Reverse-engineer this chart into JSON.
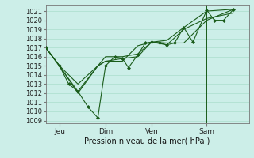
{
  "background_color": "#cceee8",
  "grid_color": "#aaddcc",
  "line_color": "#1a5c1a",
  "marker_color": "#1a5c1a",
  "xlabel_text": "Pression niveau de la mer( hPa )",
  "ylim": [
    1009,
    1021.5
  ],
  "yticks": [
    1009,
    1010,
    1011,
    1012,
    1013,
    1014,
    1015,
    1016,
    1017,
    1018,
    1019,
    1020,
    1021
  ],
  "xtick_labels": [
    "Jeu",
    "Dim",
    "Ven",
    "Sam"
  ],
  "xtick_positions": [
    18,
    78,
    138,
    210
  ],
  "xlim": [
    0,
    265
  ],
  "vlines_x": [
    18,
    78,
    138,
    210
  ],
  "series": [
    {
      "x": [
        0,
        18,
        30,
        42,
        55,
        68,
        78,
        90,
        100,
        108,
        120,
        130,
        138,
        148,
        158,
        168,
        180,
        192,
        210,
        220,
        232,
        245
      ],
      "y": [
        1017,
        1015,
        1013,
        1012.2,
        1010.5,
        1009.3,
        1015,
        1016.0,
        1015.8,
        1014.8,
        1016.2,
        1017.5,
        1017.6,
        1017.5,
        1017.3,
        1017.5,
        1019.2,
        1017.6,
        1021.1,
        1020.0,
        1020.0,
        1021.2
      ],
      "has_markers": true
    },
    {
      "x": [
        0,
        18,
        42,
        68,
        78,
        100,
        120,
        138,
        158,
        180,
        210,
        245
      ],
      "y": [
        1017,
        1015,
        1012,
        1015,
        1015.5,
        1015.8,
        1016.0,
        1017.6,
        1017.3,
        1019.0,
        1020.2,
        1020.8
      ],
      "has_markers": false
    },
    {
      "x": [
        0,
        18,
        42,
        68,
        78,
        100,
        120,
        138,
        158,
        180,
        210,
        245
      ],
      "y": [
        1017,
        1015,
        1013,
        1015,
        1016.0,
        1016.0,
        1016.3,
        1017.6,
        1017.8,
        1019.2,
        1021.0,
        1021.2
      ],
      "has_markers": false
    },
    {
      "x": [
        0,
        42,
        68,
        78,
        100,
        120,
        138,
        158,
        180,
        210,
        245
      ],
      "y": [
        1017,
        1012.2,
        1015,
        1015.5,
        1015.5,
        1017.2,
        1017.6,
        1017.5,
        1017.5,
        1020.0,
        1021.2
      ],
      "has_markers": false
    }
  ]
}
